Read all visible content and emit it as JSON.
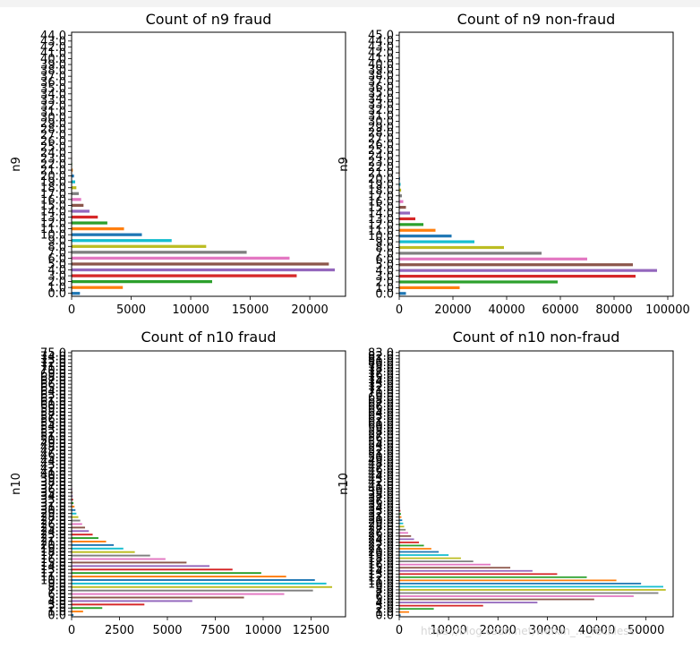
{
  "colors": [
    "#1f77b4",
    "#ff7f0e",
    "#2ca02c",
    "#d62728",
    "#9467bd",
    "#8c564b",
    "#e377c2",
    "#7f7f7f",
    "#bcbd22",
    "#17becf"
  ],
  "watermark": "https://blog.csdn.net/weixin_..._feckless",
  "chart_data": [
    {
      "type": "bar",
      "orientation": "horizontal",
      "title": "Count of n9 fraud",
      "ylabel": "n9",
      "xlim": [
        0,
        23000
      ],
      "xticks": [
        0,
        5000,
        10000,
        15000,
        20000
      ],
      "categories": [
        0,
        1,
        2,
        3,
        4,
        5,
        6,
        7,
        8,
        9,
        10,
        11,
        12,
        13,
        14,
        15,
        16,
        17,
        18,
        19,
        20,
        21,
        22,
        23,
        24,
        25,
        26,
        27,
        28,
        29,
        30,
        31,
        32,
        33,
        34,
        35,
        36,
        37,
        38,
        39,
        40,
        41,
        42,
        43,
        44
      ],
      "values": [
        700,
        4300,
        11800,
        18900,
        22100,
        21600,
        18300,
        14700,
        11300,
        8400,
        5900,
        4400,
        3000,
        2200,
        1500,
        1000,
        800,
        600,
        400,
        300,
        200,
        100,
        50,
        40,
        30,
        20,
        15,
        10,
        8,
        6,
        5,
        4,
        3,
        2,
        2,
        1,
        1,
        1,
        1,
        1,
        1,
        1,
        1,
        1,
        1
      ]
    },
    {
      "type": "bar",
      "orientation": "horizontal",
      "title": "Count of n9 non-fraud",
      "ylabel": "n9",
      "xlim": [
        0,
        102000
      ],
      "xticks": [
        0,
        20000,
        40000,
        60000,
        80000,
        100000
      ],
      "categories": [
        0,
        1,
        2,
        3,
        4,
        5,
        6,
        7,
        8,
        9,
        10,
        11,
        12,
        13,
        14,
        15,
        16,
        17,
        18,
        19,
        20,
        21,
        22,
        23,
        24,
        25,
        26,
        27,
        28,
        29,
        30,
        31,
        32,
        33,
        34,
        35,
        36,
        37,
        38,
        39,
        40,
        41,
        42,
        43,
        44,
        45
      ],
      "values": [
        2500,
        22500,
        59000,
        88000,
        96000,
        87000,
        70000,
        53000,
        39000,
        28000,
        19500,
        13500,
        9000,
        6000,
        4000,
        2500,
        1500,
        1000,
        700,
        500,
        300,
        200,
        150,
        100,
        80,
        60,
        50,
        40,
        30,
        20,
        15,
        10,
        8,
        6,
        5,
        4,
        3,
        2,
        2,
        1,
        1,
        1,
        1,
        1,
        1,
        1
      ]
    },
    {
      "type": "bar",
      "orientation": "horizontal",
      "title": "Count of n10 fraud",
      "ylabel": "n10",
      "xlim": [
        0,
        14300
      ],
      "xticks": [
        0,
        2500,
        5000,
        7500,
        10000,
        12500
      ],
      "categories": [
        0,
        1,
        2,
        3,
        4,
        5,
        6,
        7,
        8,
        9,
        10,
        11,
        12,
        13,
        14,
        15,
        16,
        17,
        18,
        19,
        20,
        21,
        22,
        23,
        24,
        25,
        26,
        27,
        28,
        29,
        30,
        31,
        32,
        33,
        34,
        35,
        36,
        37,
        38,
        39,
        40,
        41,
        42,
        43,
        44,
        45,
        46,
        47,
        48,
        49,
        50,
        51,
        52,
        53,
        54,
        55,
        56,
        57,
        58,
        59,
        60,
        61,
        62,
        63,
        64,
        65,
        66,
        67,
        68,
        69,
        70,
        71,
        72,
        73,
        74,
        75
      ],
      "values": [
        100,
        600,
        1600,
        3800,
        6300,
        9000,
        11100,
        12600,
        13600,
        13300,
        12700,
        11200,
        9900,
        8400,
        7200,
        6000,
        4900,
        4100,
        3300,
        2700,
        2200,
        1800,
        1400,
        1100,
        900,
        700,
        550,
        450,
        350,
        250,
        200,
        150,
        100,
        80,
        60,
        50,
        40,
        30,
        25,
        20,
        15,
        12,
        10,
        8,
        6,
        5,
        4,
        3,
        3,
        2,
        2,
        2,
        1,
        1,
        1,
        1,
        1,
        1,
        1,
        1,
        1,
        1,
        1,
        1,
        1,
        1,
        1,
        1,
        1,
        1,
        1,
        1,
        1,
        1,
        1,
        1
      ]
    },
    {
      "type": "bar",
      "orientation": "horizontal",
      "title": "Count of n10 non-fraud",
      "ylabel": "n10",
      "xlim": [
        0,
        55500
      ],
      "xticks": [
        0,
        10000,
        20000,
        30000,
        40000,
        50000
      ],
      "categories": [
        0,
        1,
        2,
        3,
        4,
        5,
        6,
        7,
        8,
        9,
        10,
        11,
        12,
        13,
        14,
        15,
        16,
        17,
        18,
        19,
        20,
        21,
        22,
        23,
        24,
        25,
        26,
        27,
        28,
        29,
        30,
        31,
        32,
        33,
        34,
        35,
        36,
        37,
        38,
        39,
        40,
        41,
        42,
        43,
        44,
        45,
        46,
        47,
        48,
        49,
        50,
        51,
        52,
        53,
        54,
        55,
        56,
        57,
        58,
        59,
        60,
        61,
        62,
        63,
        64,
        65,
        66,
        67,
        68,
        69,
        70,
        71,
        72,
        73,
        74,
        75,
        76,
        77,
        78,
        79,
        80,
        81,
        82,
        83
      ],
      "values": [
        300,
        2000,
        7000,
        17000,
        28000,
        39500,
        47500,
        52500,
        54000,
        53500,
        49000,
        44000,
        38000,
        32000,
        27000,
        22500,
        18500,
        15000,
        12500,
        10000,
        8000,
        6500,
        5000,
        4000,
        3000,
        2400,
        1800,
        1300,
        1000,
        800,
        600,
        450,
        350,
        250,
        180,
        130,
        100,
        80,
        60,
        45,
        35,
        25,
        20,
        15,
        12,
        10,
        8,
        6,
        5,
        4,
        3,
        3,
        2,
        2,
        2,
        1,
        1,
        1,
        1,
        1,
        1,
        1,
        1,
        1,
        1,
        1,
        1,
        1,
        1,
        1,
        1,
        1,
        1,
        1,
        1,
        1,
        1,
        1,
        1,
        1,
        1,
        1,
        1,
        1
      ]
    }
  ]
}
